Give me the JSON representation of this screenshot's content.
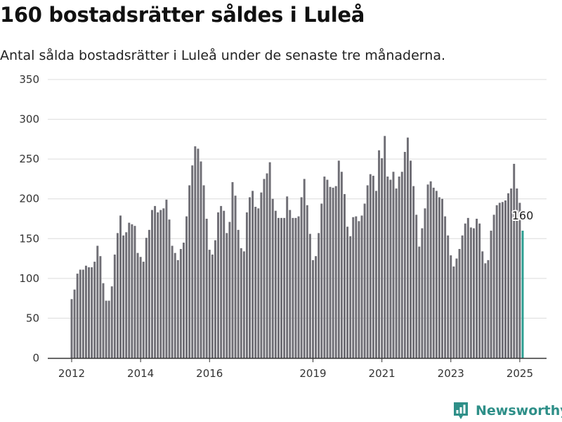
{
  "title": "160 bostadsrätter såldes i Luleå",
  "subtitle": "Antal sålda bostadsrätter i Luleå under de senaste tre månaderna.",
  "brand": {
    "name": "Newsworthy",
    "icon": "newsworthy-logo-icon",
    "color": "#2e8f88"
  },
  "chart_data": {
    "type": "bar",
    "title": "160 bostadsrätter såldes i Luleå",
    "subtitle": "Antal sålda bostadsrätter i Luleå under de senaste tre månaderna.",
    "xlabel": "",
    "ylabel": "",
    "ylim": [
      0,
      350
    ],
    "yticks": [
      0,
      50,
      100,
      150,
      200,
      250,
      300,
      350
    ],
    "xticks": [
      "2012",
      "2014",
      "2016",
      "2019",
      "2021",
      "2023",
      "2025"
    ],
    "grid": true,
    "colors": {
      "bar": "#6f6e75",
      "highlight": "#2a9d90"
    },
    "period": "monthly, 2012-01 to 2025-01",
    "values": [
      74,
      86,
      106,
      111,
      111,
      116,
      114,
      114,
      121,
      141,
      128,
      94,
      72,
      72,
      90,
      130,
      157,
      179,
      154,
      158,
      170,
      168,
      166,
      132,
      127,
      121,
      151,
      161,
      186,
      191,
      183,
      186,
      188,
      199,
      174,
      141,
      132,
      123,
      137,
      145,
      178,
      217,
      242,
      266,
      263,
      247,
      217,
      175,
      136,
      130,
      148,
      183,
      191,
      185,
      157,
      171,
      221,
      204,
      161,
      138,
      134,
      183,
      202,
      210,
      190,
      188,
      208,
      225,
      232,
      246,
      200,
      185,
      176,
      176,
      176,
      203,
      186,
      176,
      176,
      178,
      202,
      225,
      192,
      156,
      123,
      128,
      157,
      194,
      228,
      224,
      215,
      214,
      216,
      248,
      234,
      206,
      165,
      153,
      177,
      178,
      172,
      179,
      194,
      217,
      231,
      229,
      210,
      261,
      251,
      279,
      228,
      224,
      234,
      213,
      228,
      234,
      259,
      277,
      248,
      216,
      180,
      140,
      163,
      188,
      218,
      222,
      214,
      210,
      202,
      200,
      178,
      154,
      129,
      115,
      125,
      137,
      154,
      169,
      176,
      164,
      163,
      175,
      169,
      134,
      119,
      123,
      160,
      180,
      192,
      195,
      196,
      198,
      207,
      213,
      244,
      213,
      195,
      160
    ],
    "highlight": {
      "label": "160",
      "value": 160,
      "date": "2025-01"
    }
  }
}
